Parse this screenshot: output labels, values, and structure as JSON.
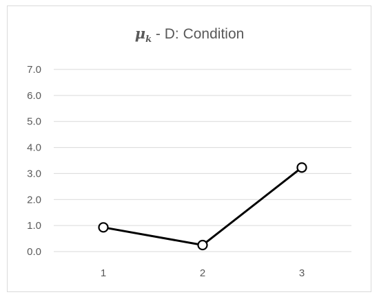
{
  "chart_data": {
    "type": "line",
    "title": {
      "symbol": "μ",
      "subscript": "k",
      "text": " - D: Condition"
    },
    "categories": [
      "1",
      "2",
      "3"
    ],
    "series": [
      {
        "values": [
          0.93,
          0.25,
          3.23
        ]
      }
    ],
    "y_ticks": [
      "0.0",
      "1.0",
      "2.0",
      "3.0",
      "4.0",
      "5.0",
      "6.0",
      "7.0"
    ],
    "ylim": [
      0,
      7
    ],
    "grid": true,
    "legend": "none",
    "colors": {
      "line": "#000000",
      "marker_fill": "#ffffff",
      "gridline": "#d9d9d9",
      "text": "#595959"
    }
  }
}
